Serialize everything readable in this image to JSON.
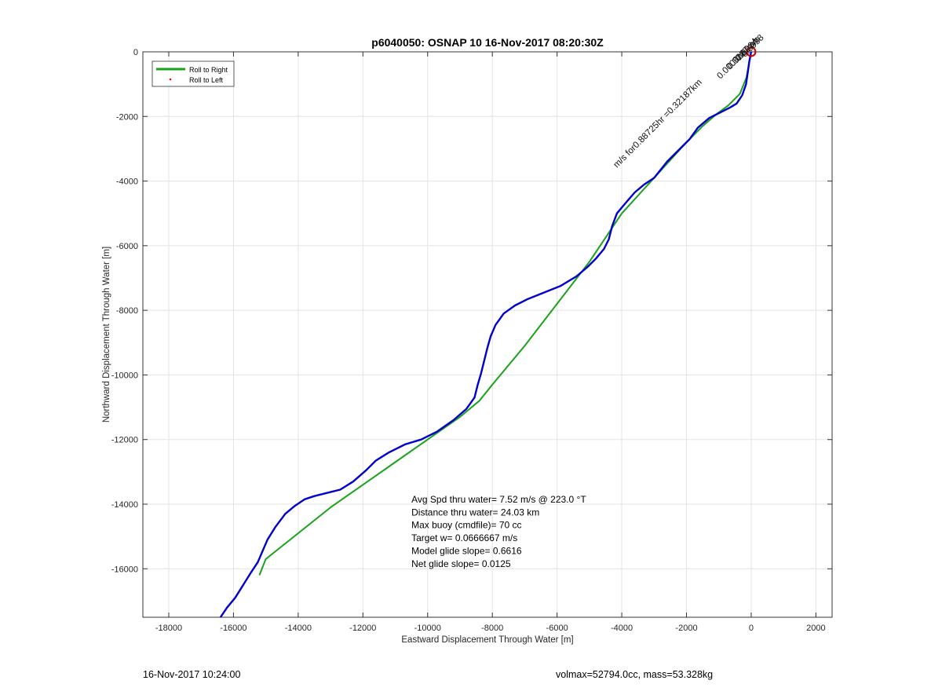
{
  "chart_data": {
    "type": "line",
    "title": "p6040050: OSNAP 10 16-Nov-2017 08:20:30Z",
    "xlabel": "Eastward Displacement Through Water [m]",
    "ylabel": "Northward Displacement Through Water [m]",
    "xlim": [
      -18800,
      2500
    ],
    "ylim": [
      -17500,
      0
    ],
    "xticks": [
      -18000,
      -16000,
      -14000,
      -12000,
      -10000,
      -8000,
      -6000,
      -4000,
      -2000,
      0,
      2000
    ],
    "yticks": [
      0,
      -2000,
      -4000,
      -6000,
      -8000,
      -10000,
      -12000,
      -14000,
      -16000
    ],
    "grid": true,
    "legend_position": "top-left",
    "legend": [
      {
        "label": "Roll to Right",
        "color": "#1aa31a",
        "marker": "line"
      },
      {
        "label": "Roll to Left",
        "color": "#ff0000",
        "marker": "dot"
      }
    ],
    "series": [
      {
        "name": "",
        "color": "#1aa31a",
        "x": [
          0,
          -150,
          -350,
          -700,
          -1100,
          -1500,
          -2000,
          -3000,
          -4000,
          -5000,
          -6000,
          -7000,
          -8000,
          -8400,
          -9000,
          -10000,
          -11000,
          -12000,
          -13000,
          -14000,
          -15000,
          -15200
        ],
        "y": [
          0,
          -800,
          -1300,
          -1650,
          -1950,
          -2300,
          -2800,
          -3900,
          -5000,
          -6500,
          -7800,
          -9100,
          -10300,
          -10800,
          -11300,
          -12000,
          -12700,
          -13400,
          -14100,
          -14900,
          -15700,
          -16200
        ]
      },
      {
        "name": "",
        "color": "#0000cc",
        "x": [
          0,
          -60,
          -100,
          -160,
          -280,
          -450,
          -650,
          -900,
          -1300,
          -1650,
          -1900,
          -2200,
          -2600,
          -3000,
          -3300,
          -3600,
          -3900,
          -4150,
          -4300,
          -4400,
          -4550,
          -4800,
          -5050,
          -5400,
          -5900,
          -6400,
          -6900,
          -7300,
          -7650,
          -7900,
          -8050,
          -8150,
          -8250,
          -8350,
          -8450,
          -8550,
          -8800,
          -9200,
          -9700,
          -10200,
          -10700,
          -11200,
          -11600,
          -11900,
          -12300,
          -12700,
          -13100,
          -13500,
          -13800,
          -14100,
          -14400,
          -14700,
          -14950,
          -15100,
          -15250,
          -15450,
          -15700,
          -15950,
          -16200,
          -16400
        ],
        "y": [
          0,
          -300,
          -600,
          -1000,
          -1350,
          -1600,
          -1720,
          -1850,
          -2050,
          -2350,
          -2700,
          -3000,
          -3400,
          -3900,
          -4100,
          -4350,
          -4700,
          -5000,
          -5400,
          -5800,
          -6100,
          -6400,
          -6650,
          -6950,
          -7250,
          -7450,
          -7650,
          -7850,
          -8100,
          -8450,
          -8800,
          -9150,
          -9550,
          -9950,
          -10300,
          -10700,
          -11050,
          -11400,
          -11750,
          -12000,
          -12150,
          -12400,
          -12650,
          -12950,
          -13300,
          -13550,
          -13650,
          -13750,
          -13850,
          -14050,
          -14300,
          -14700,
          -15100,
          -15450,
          -15800,
          -16100,
          -16500,
          -16900,
          -17200,
          -17500
        ]
      }
    ],
    "start_marker": {
      "x": 0,
      "y": 0,
      "color": "#cc0000"
    },
    "annotations": [
      {
        "text": "m/s for0.88725hr =0.32187km",
        "x": -4150,
        "y": -3600,
        "angle_deg": -45
      },
      {
        "text": "0.0000m",
        "x": -950,
        "y": -850,
        "angle_deg": -45
      },
      {
        "text": "0.3287m/s",
        "x": -640,
        "y": -550,
        "angle_deg": -45
      },
      {
        "text": "0.0034",
        "x": -380,
        "y": -300,
        "angle_deg": -45
      },
      {
        "text": "0.0038",
        "x": -200,
        "y": -180,
        "angle_deg": -45
      }
    ],
    "stats": [
      "Avg Spd thru water=  7.52 m/s @ 223.0 °T",
      "Distance thru water= 24.03 km",
      "Max buoy (cmdfile)= 70 cc",
      "Target w= 0.0666667 m/s",
      "Model glide slope= 0.6616",
      "Net glide slope= 0.0125"
    ],
    "stats_anchor": {
      "x": -10500,
      "y": -13950
    }
  },
  "footer": {
    "left": "16-Nov-2017 10:24:00",
    "right": "volmax=52794.0cc, mass=53.328kg"
  }
}
